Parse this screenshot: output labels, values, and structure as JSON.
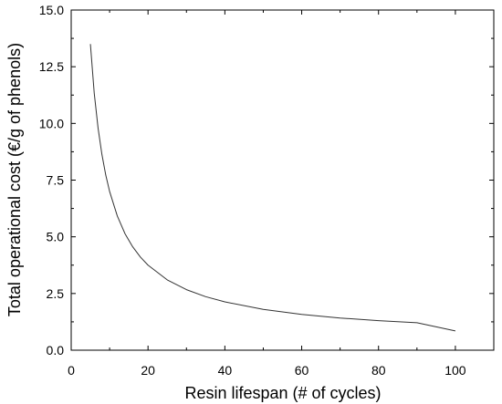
{
  "chart_data": {
    "type": "line",
    "xlabel": "Resin lifespan (# of cycles)",
    "ylabel": "Total operational cost (€/g of phenols)",
    "xlim": [
      0,
      110
    ],
    "ylim": [
      0,
      15
    ],
    "xticks": [
      0,
      20,
      40,
      60,
      80,
      100
    ],
    "xtick_labels": [
      "0",
      "20",
      "40",
      "60",
      "80",
      "100"
    ],
    "yticks": [
      0,
      2.5,
      5,
      7.5,
      10,
      12.5,
      15
    ],
    "ytick_labels": [
      "0.0",
      "2.5",
      "5.0",
      "7.5",
      "10.0",
      "12.5",
      "15.0"
    ],
    "grid": false,
    "line_color": "#333333",
    "series": [
      {
        "x": [
          5,
          6,
          7,
          8,
          9,
          10,
          12,
          14,
          16,
          18,
          20,
          25,
          30,
          35,
          40,
          50,
          60,
          70,
          80,
          90,
          100
        ],
        "y": [
          13.5,
          11.33,
          9.79,
          8.63,
          7.72,
          7.0,
          5.92,
          5.14,
          4.56,
          4.11,
          3.75,
          3.1,
          2.67,
          2.36,
          2.13,
          1.8,
          1.58,
          1.42,
          1.3,
          1.21,
          0.85
        ]
      }
    ]
  }
}
